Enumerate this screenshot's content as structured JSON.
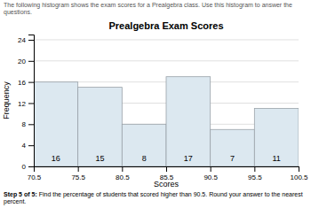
{
  "chart_data": {
    "type": "histogram",
    "title": "Prealgebra Exam Scores",
    "subtitle": "The following histogram shows the exam scores for a Prealgebra class. Use this histogram to answer the questions.",
    "annotations": [
      "Step 5 of 5:",
      " Find the percentage of students that scored higher than 90.5. Round your answer to the nearest percent."
    ],
    "xlabel": "Scores",
    "ylabel": "Frequency",
    "bins": [
      70.5,
      75.5,
      80.5,
      85.5,
      90.5,
      95.5,
      100.5
    ],
    "values": [
      16,
      15,
      8,
      17,
      7,
      11
    ],
    "color": "#dce8f0",
    "xlim": [
      70.5,
      100.5
    ],
    "xticks": [
      70.5,
      75.5,
      80.5,
      85.5,
      90.5,
      95.5,
      100.5
    ],
    "ylim": [
      0,
      25
    ],
    "yticks": [
      0,
      4,
      8,
      12,
      16,
      20,
      24
    ],
    "grid": true,
    "data_labels": true
  }
}
